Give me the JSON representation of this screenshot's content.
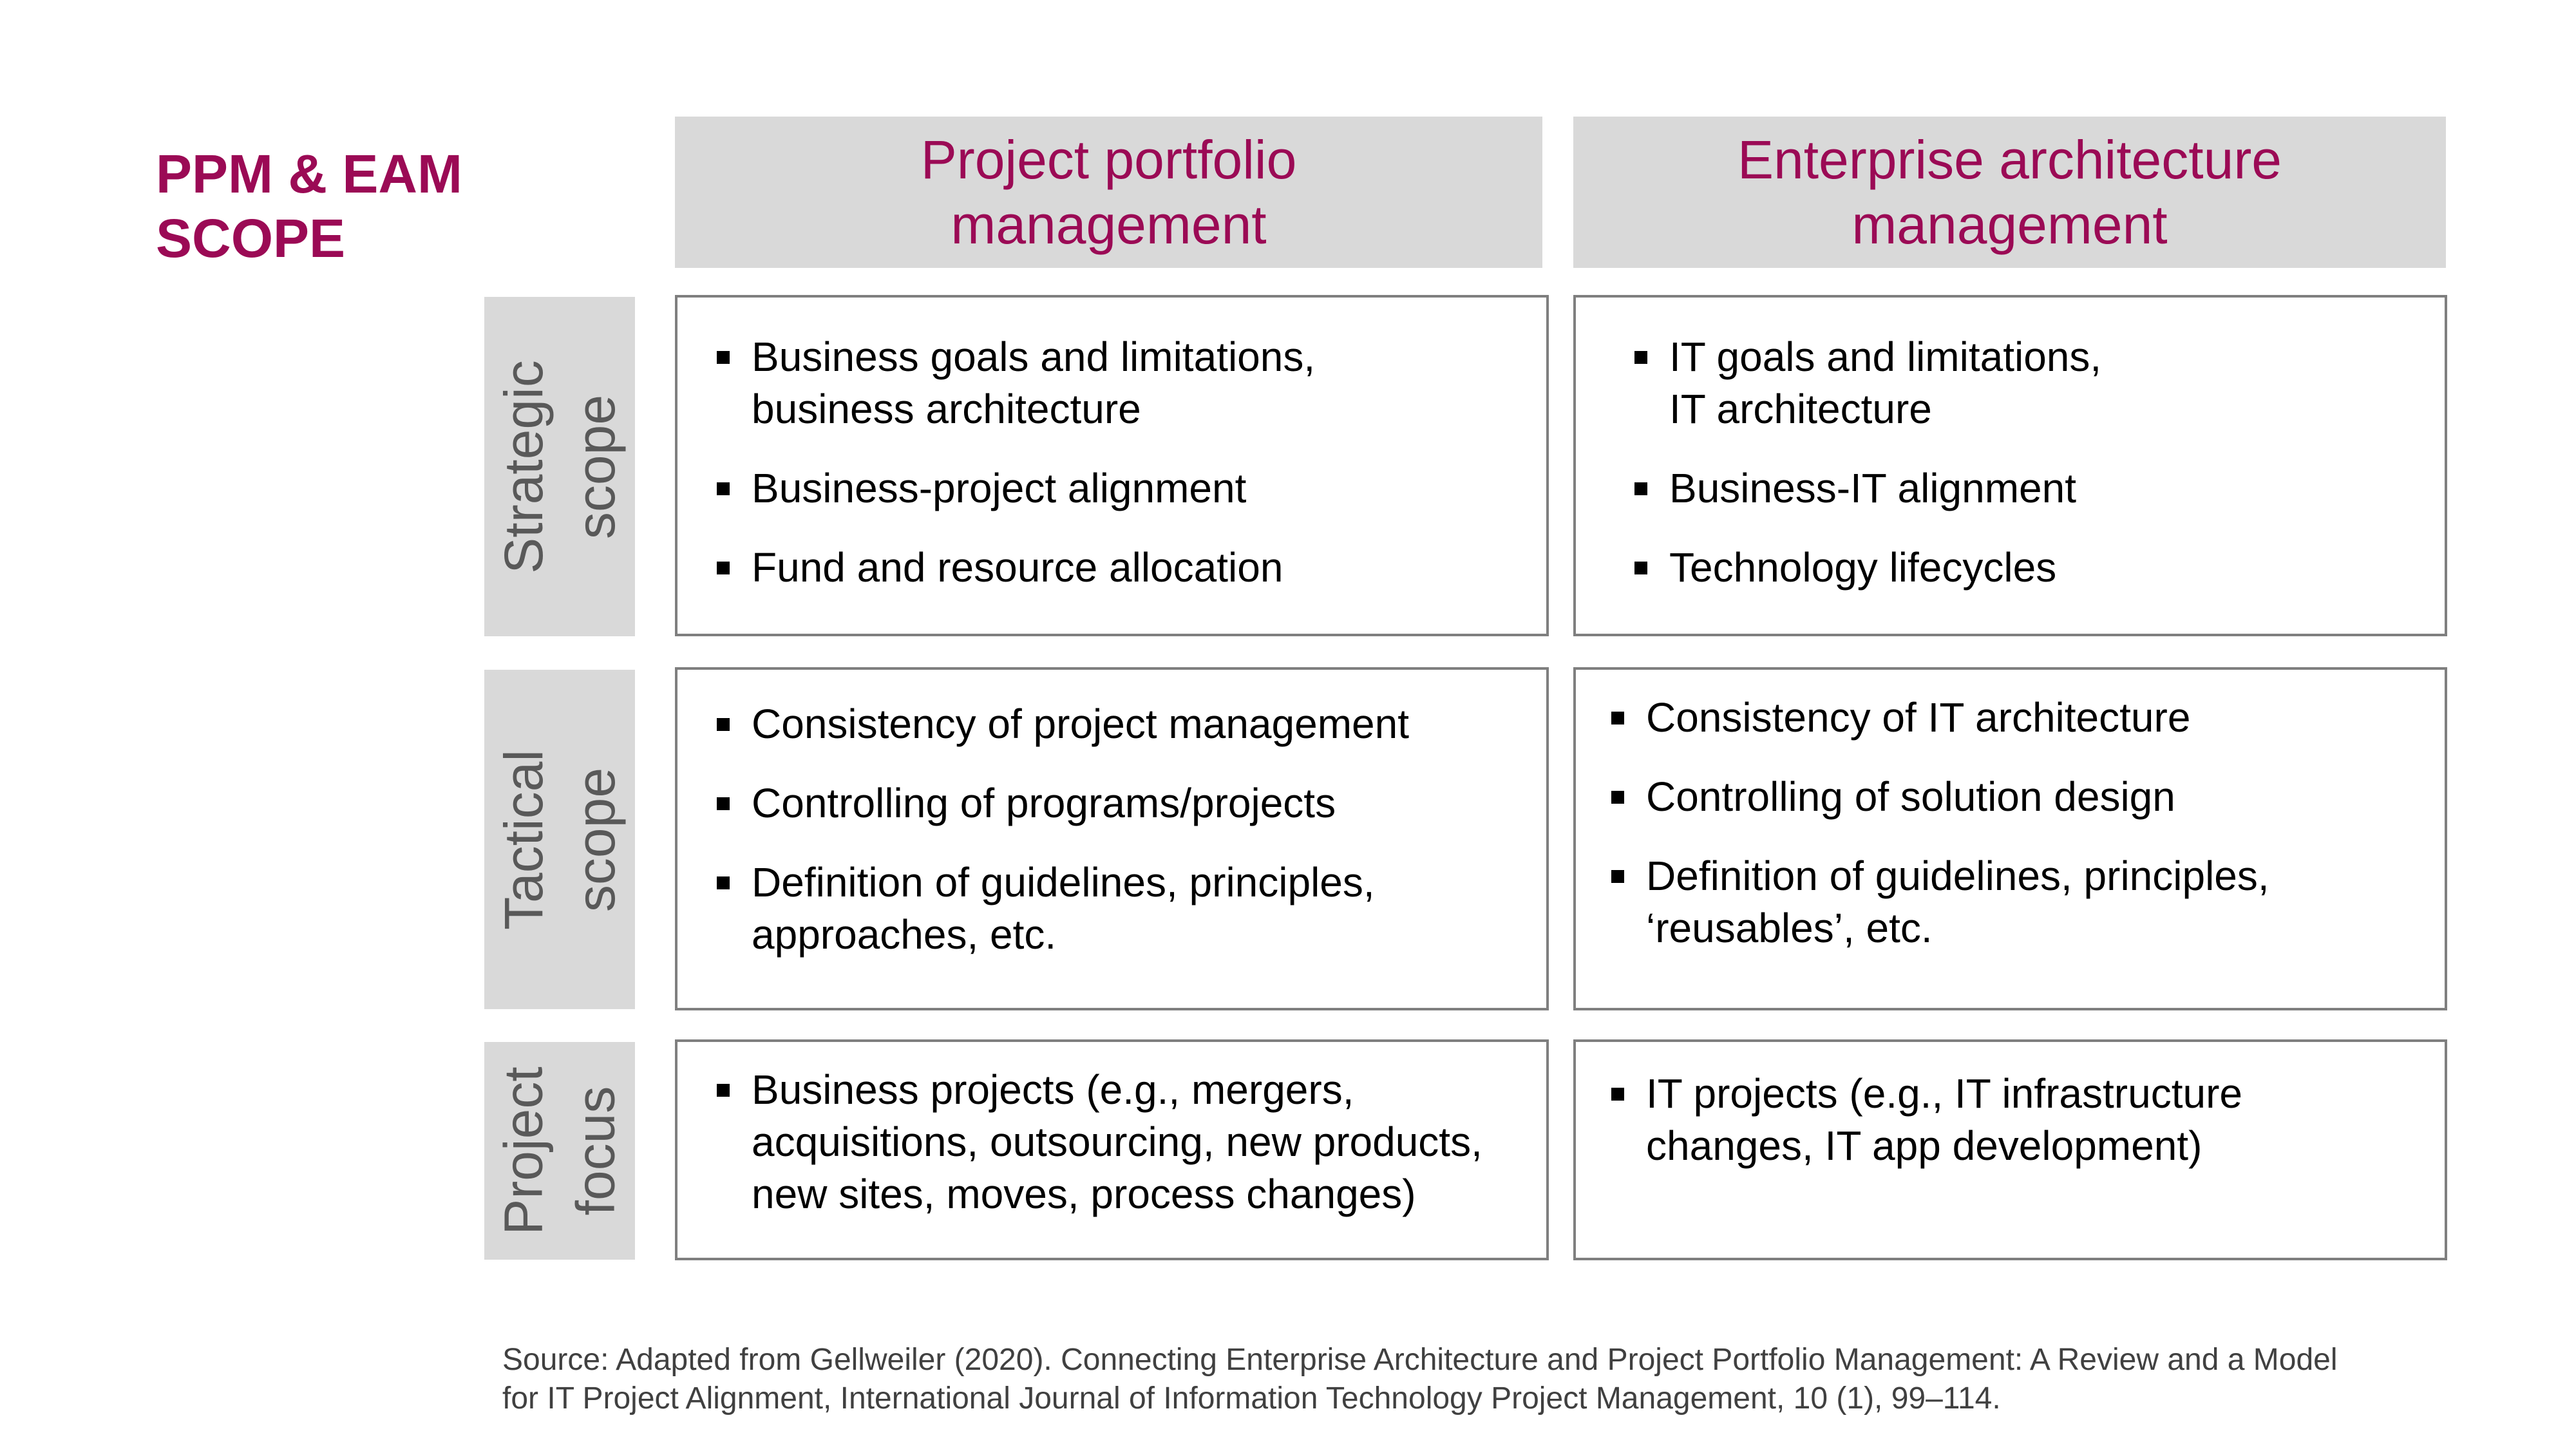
{
  "title": {
    "line1": "PPM & EAM",
    "line2": "SCOPE"
  },
  "columns": [
    {
      "line1": "Project portfolio",
      "line2": "management"
    },
    {
      "line1": "Enterprise architecture",
      "line2": "management"
    }
  ],
  "rows": [
    {
      "line1": "Strategic",
      "line2": "scope"
    },
    {
      "line1": "Tactical",
      "line2": "scope"
    },
    {
      "line1": "Project",
      "line2": "focus"
    }
  ],
  "cells": {
    "strategic_ppm": [
      {
        "line1": "Business goals and limitations,",
        "line2": "business architecture"
      },
      {
        "line1": "Business-project alignment"
      },
      {
        "line1": "Fund and resource allocation"
      }
    ],
    "strategic_eam": [
      {
        "line1": "IT goals and limitations,",
        "line2": "IT architecture"
      },
      {
        "line1": "Business-IT alignment"
      },
      {
        "line1": "Technology lifecycles"
      }
    ],
    "tactical_ppm": [
      {
        "line1": "Consistency of project management"
      },
      {
        "line1": "Controlling of programs/projects"
      },
      {
        "line1": "Definition of guidelines, principles,",
        "line2": "approaches, etc."
      }
    ],
    "tactical_eam": [
      {
        "line1": "Consistency of IT architecture"
      },
      {
        "line1": "Controlling of solution design"
      },
      {
        "line1": "Definition of guidelines, principles,",
        "line2": "‘reusables’, etc."
      }
    ],
    "project_ppm": [
      {
        "line1": "Business projects (e.g., mergers,",
        "line2": "acquisitions, outsourcing, new products,",
        "line3": "new sites, moves, process changes)"
      }
    ],
    "project_eam": [
      {
        "line1": "IT projects (e.g., IT infrastructure",
        "line2": "changes, IT app development)"
      }
    ]
  },
  "source": {
    "line1": "Source: Adapted from Gellweiler (2020). Connecting Enterprise Architecture and Project Portfolio Management: A Review and a Model",
    "line2": "for IT Project Alignment, International Journal of Information Technology Project Management, 10 (1), 99–114."
  },
  "colors": {
    "accent": "#9b0a55",
    "header_bg": "#d9d9d9",
    "border": "#7f7f7f",
    "label_text": "#595959"
  }
}
